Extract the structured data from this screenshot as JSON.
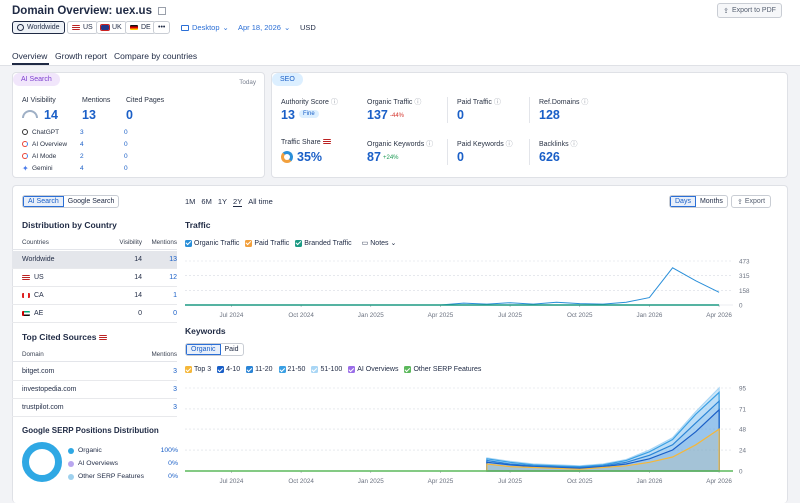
{
  "header": {
    "title_prefix": "Domain Overview:",
    "domain": "uex.us",
    "export_pdf": "Export to PDF",
    "db_chips": [
      {
        "label": "Worldwide",
        "selected": true,
        "icon": "globe-icon"
      },
      {
        "label": "US",
        "flag": "us"
      },
      {
        "label": "UK",
        "flag": "uk"
      },
      {
        "label": "DE",
        "flag": "de"
      }
    ],
    "more": "•••",
    "device": "Desktop",
    "date": "Apr 18, 2026",
    "currency": "USD"
  },
  "tabs": [
    "Overview",
    "Growth report",
    "Compare by countries"
  ],
  "ai_search": {
    "pill": "AI Search",
    "today": "Today",
    "visibility_label": "AI Visibility",
    "visibility_value": "14",
    "mentions_label": "Mentions",
    "mentions_value": "13",
    "cited_label": "Cited Pages",
    "cited_value": "0",
    "rows": [
      {
        "name": "ChatGPT",
        "mentions": "3",
        "cited": "0"
      },
      {
        "name": "AI Overview",
        "mentions": "4",
        "cited": "0"
      },
      {
        "name": "AI Mode",
        "mentions": "2",
        "cited": "0"
      },
      {
        "name": "Gemini",
        "mentions": "4",
        "cited": "0"
      }
    ]
  },
  "seo": {
    "pill": "SEO",
    "authority_label": "Authority Score",
    "authority_value": "13",
    "authority_badge": "Fine",
    "organic_traffic_label": "Organic Traffic",
    "organic_traffic_value": "137",
    "organic_traffic_change": "-44%",
    "paid_traffic_label": "Paid Traffic",
    "paid_traffic_value": "0",
    "ref_domains_label": "Ref.Domains",
    "ref_domains_value": "128",
    "traffic_share_label": "Traffic Share",
    "traffic_share_value": "35%",
    "organic_kw_label": "Organic Keywords",
    "organic_kw_value": "87",
    "organic_kw_change": "+24%",
    "paid_kw_label": "Paid Keywords",
    "paid_kw_value": "0",
    "backlinks_label": "Backlinks",
    "backlinks_value": "626"
  },
  "left_panel": {
    "toggle": [
      "AI Search",
      "Google Search"
    ],
    "dist_title": "Distribution by Country",
    "dist_headers": [
      "Countries",
      "Visibility",
      "Mentions"
    ],
    "dist_rows": [
      {
        "country": "Worldwide",
        "visibility": "14",
        "mentions": "13",
        "flag": "none"
      },
      {
        "country": "US",
        "visibility": "14",
        "mentions": "12",
        "flag": "us"
      },
      {
        "country": "CA",
        "visibility": "14",
        "mentions": "1",
        "flag": "ca"
      },
      {
        "country": "AE",
        "visibility": "0",
        "mentions": "0",
        "flag": "ae"
      }
    ],
    "cited_title": "Top Cited Sources",
    "cited_headers": [
      "Domain",
      "Mentions"
    ],
    "cited_rows": [
      {
        "domain": "bitget.com",
        "mentions": "3"
      },
      {
        "domain": "investopedia.com",
        "mentions": "3"
      },
      {
        "domain": "trustpilot.com",
        "mentions": "3"
      }
    ],
    "serp_title": "Google SERP Positions Distribution",
    "serp_rows": [
      {
        "label": "Organic",
        "value": "100%",
        "color": "#2fa8e4"
      },
      {
        "label": "AI Overviews",
        "value": "0%",
        "color": "#b9a6ef"
      },
      {
        "label": "Other SERP Features",
        "value": "0%",
        "color": "#9fd1ee"
      }
    ]
  },
  "charts_panel": {
    "ranges": [
      "1M",
      "6M",
      "1Y",
      "2Y",
      "All time"
    ],
    "selected_range": "2Y",
    "granularity": [
      "Days",
      "Months"
    ],
    "export": "Export",
    "traffic_title": "Traffic",
    "traffic_legend": [
      {
        "label": "Organic Traffic",
        "color": "#2a8fd9"
      },
      {
        "label": "Paid Traffic",
        "color": "#f2a03d"
      },
      {
        "label": "Branded Traffic",
        "color": "#1d9a84"
      }
    ],
    "notes": "Notes",
    "keywords_title": "Keywords",
    "kw_toggle": [
      "Organic",
      "Paid"
    ],
    "kw_legend": [
      {
        "label": "Top 3",
        "color": "#f5b73a"
      },
      {
        "label": "4-10",
        "color": "#1a5fc7"
      },
      {
        "label": "11-20",
        "color": "#2a84d6"
      },
      {
        "label": "21-50",
        "color": "#3aa0e4"
      },
      {
        "label": "51-100",
        "color": "#a9d6f5"
      },
      {
        "label": "AI Overviews",
        "color": "#9b6ee8"
      },
      {
        "label": "Other SERP Features",
        "color": "#5cb85c"
      }
    ],
    "x_ticks": [
      "Jul 2024",
      "Oct 2024",
      "Jan 2025",
      "Apr 2025",
      "Jul 2025",
      "Oct 2025",
      "Jan 2026",
      "Apr 2026"
    ]
  },
  "chart_data": [
    {
      "type": "line",
      "title": "Traffic",
      "y_ticks": [
        0,
        158,
        315,
        473
      ],
      "x_ticks": [
        "Jul 2024",
        "Oct 2024",
        "Jan 2025",
        "Apr 2025",
        "Jul 2025",
        "Oct 2025",
        "Jan 2026",
        "Apr 2026"
      ],
      "series": [
        {
          "name": "Organic Traffic",
          "x": [
            "May 2024",
            "Apr 2025",
            "May 2025",
            "Jun 2025",
            "Jul 2025",
            "Aug 2025",
            "Sep 2025",
            "Oct 2025",
            "Nov 2025",
            "Dec 2025",
            "Jan 2026",
            "Feb 2026",
            "Mar 2026",
            "Apr 2026"
          ],
          "values": [
            0,
            0,
            20,
            10,
            25,
            10,
            30,
            15,
            10,
            30,
            80,
            400,
            260,
            137
          ]
        },
        {
          "name": "Branded Traffic",
          "x": [
            "May 2024",
            "Apr 2026"
          ],
          "values": [
            0,
            0
          ]
        }
      ]
    },
    {
      "type": "area",
      "title": "Keywords",
      "y_ticks": [
        0,
        24,
        48,
        71,
        95
      ],
      "x_ticks": [
        "Jul 2024",
        "Oct 2024",
        "Jan 2025",
        "Apr 2025",
        "Jul 2025",
        "Oct 2025",
        "Jan 2026",
        "Apr 2026"
      ],
      "x": [
        "Jun 2025",
        "Jul 2025",
        "Aug 2025",
        "Sep 2025",
        "Oct 2025",
        "Nov 2025",
        "Dec 2025",
        "Jan 2026",
        "Feb 2026",
        "Mar 2026",
        "Apr 2026"
      ],
      "series": [
        {
          "name": "Top 3",
          "values": [
            8,
            5,
            4,
            3,
            2,
            4,
            6,
            10,
            16,
            30,
            48
          ]
        },
        {
          "name": "4-10",
          "values": [
            10,
            7,
            5,
            4,
            3,
            5,
            8,
            14,
            24,
            45,
            70
          ]
        },
        {
          "name": "11-20",
          "values": [
            12,
            8,
            6,
            5,
            4,
            6,
            10,
            18,
            30,
            55,
            80
          ]
        },
        {
          "name": "21-50",
          "values": [
            14,
            10,
            7,
            6,
            5,
            7,
            12,
            22,
            36,
            65,
            90
          ]
        },
        {
          "name": "51-100",
          "values": [
            15,
            11,
            8,
            7,
            6,
            8,
            13,
            24,
            38,
            68,
            95
          ]
        }
      ]
    }
  ]
}
